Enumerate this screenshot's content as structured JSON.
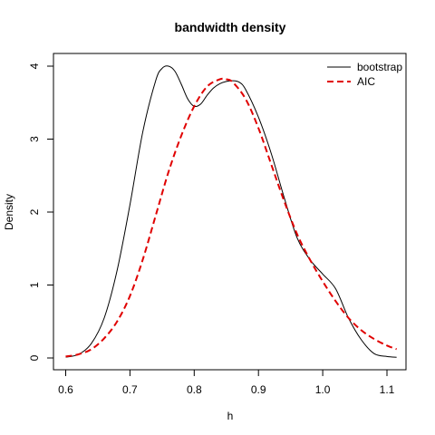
{
  "chart_data": {
    "type": "line",
    "title": "bandwidth density",
    "xlabel": "h",
    "ylabel": "Density",
    "xlim": [
      0.6,
      1.1
    ],
    "ylim": [
      0,
      4
    ],
    "x_ticks": [
      "0.6",
      "0.7",
      "0.8",
      "0.9",
      "1.0",
      "1.1"
    ],
    "y_ticks": [
      "0",
      "1",
      "2",
      "3",
      "4"
    ],
    "grid": false,
    "legend_position": "top-right",
    "series": [
      {
        "name": "bootstrap",
        "color": "#000000",
        "line_style": "solid",
        "x": [
          0.6,
          0.62,
          0.64,
          0.66,
          0.68,
          0.7,
          0.72,
          0.74,
          0.75,
          0.76,
          0.77,
          0.78,
          0.79,
          0.8,
          0.81,
          0.82,
          0.83,
          0.84,
          0.85,
          0.86,
          0.87,
          0.88,
          0.9,
          0.92,
          0.94,
          0.96,
          0.98,
          1.0,
          1.02,
          1.04,
          1.06,
          1.08,
          1.1,
          1.115
        ],
        "y": [
          0.01,
          0.05,
          0.2,
          0.55,
          1.2,
          2.1,
          3.1,
          3.8,
          3.97,
          4.0,
          3.93,
          3.75,
          3.55,
          3.45,
          3.48,
          3.6,
          3.7,
          3.76,
          3.79,
          3.8,
          3.78,
          3.68,
          3.3,
          2.8,
          2.2,
          1.65,
          1.35,
          1.15,
          0.95,
          0.55,
          0.25,
          0.06,
          0.02,
          0.01
        ]
      },
      {
        "name": "AIC",
        "color": "#e00000",
        "line_style": "dashed",
        "x": [
          0.6,
          0.62,
          0.64,
          0.66,
          0.68,
          0.7,
          0.72,
          0.74,
          0.76,
          0.78,
          0.8,
          0.82,
          0.84,
          0.85,
          0.86,
          0.88,
          0.9,
          0.92,
          0.94,
          0.96,
          0.98,
          1.0,
          1.02,
          1.04,
          1.06,
          1.08,
          1.1,
          1.115
        ],
        "y": [
          0.02,
          0.05,
          0.12,
          0.27,
          0.5,
          0.85,
          1.35,
          1.95,
          2.55,
          3.05,
          3.45,
          3.72,
          3.82,
          3.82,
          3.78,
          3.55,
          3.15,
          2.65,
          2.15,
          1.7,
          1.35,
          1.05,
          0.78,
          0.55,
          0.38,
          0.26,
          0.17,
          0.12
        ]
      }
    ]
  }
}
